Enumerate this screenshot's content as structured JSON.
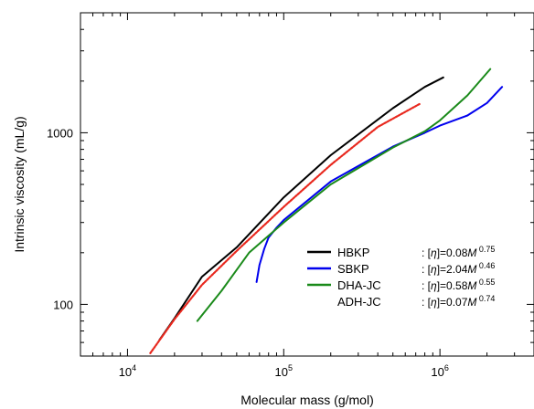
{
  "chart_data": {
    "type": "line",
    "title": "",
    "xlabel": "Molecular mass (g/mol)",
    "ylabel": "Intrinsic viscosity (mL/g)",
    "xscale": "log",
    "yscale": "log",
    "xlim": [
      5000,
      4000000
    ],
    "ylim": [
      50,
      5000
    ],
    "x_major_ticks": [
      10000,
      100000,
      1000000
    ],
    "x_tick_labels": [
      {
        "base": "10",
        "exp": "4"
      },
      {
        "base": "10",
        "exp": "5"
      },
      {
        "base": "10",
        "exp": "6"
      }
    ],
    "y_major_ticks": [
      100,
      1000
    ],
    "y_tick_labels": [
      "100",
      "1000"
    ],
    "grid": false,
    "legend_position": "lower-right",
    "series": [
      {
        "name": "HBKP",
        "equation": {
          "prefix": ": [",
          "eta": "η",
          "mid": "]=0.08",
          "var": "M",
          "exp": "0.75"
        },
        "color": "#000000",
        "style": "solid",
        "x": [
          16000,
          20000,
          30000,
          50000,
          100000,
          200000,
          500000,
          800000,
          1050000
        ],
        "y": [
          62,
          83,
          145,
          215,
          420,
          740,
          1390,
          1850,
          2100
        ]
      },
      {
        "name": "SBKP",
        "equation": {
          "prefix": ": [",
          "eta": "η",
          "mid": "]=2.04",
          "var": "M",
          "exp": "0.46"
        },
        "color": "#0000ee",
        "style": "solid",
        "x": [
          67000,
          70000,
          75000,
          80000,
          90000,
          100000,
          200000,
          500000,
          800000,
          1000000,
          1500000,
          2000000,
          2500000
        ],
        "y": [
          135,
          170,
          210,
          245,
          280,
          310,
          520,
          830,
          1000,
          1100,
          1260,
          1490,
          1850
        ]
      },
      {
        "name": "DHA-JC",
        "equation": {
          "prefix": ": [",
          "eta": "η",
          "mid": "]=0.58",
          "var": "M",
          "exp": "0.55"
        },
        "color": "#1a8a1a",
        "style": "solid",
        "x": [
          28000,
          40000,
          60000,
          100000,
          200000,
          500000,
          800000,
          1000000,
          1500000,
          2100000
        ],
        "y": [
          80,
          120,
          200,
          300,
          500,
          820,
          1020,
          1180,
          1650,
          2350
        ]
      },
      {
        "name": "ADH-JC",
        "equation": {
          "prefix": ": [",
          "eta": "η",
          "mid": "]=0.07",
          "var": "M",
          "exp": "0.74"
        },
        "color": "#e8281e",
        "style": "dotted",
        "x": [
          14000,
          20000,
          30000,
          50000,
          100000,
          200000,
          400000,
          750000
        ],
        "y": [
          52,
          82,
          130,
          205,
          370,
          650,
          1080,
          1480
        ]
      }
    ]
  }
}
